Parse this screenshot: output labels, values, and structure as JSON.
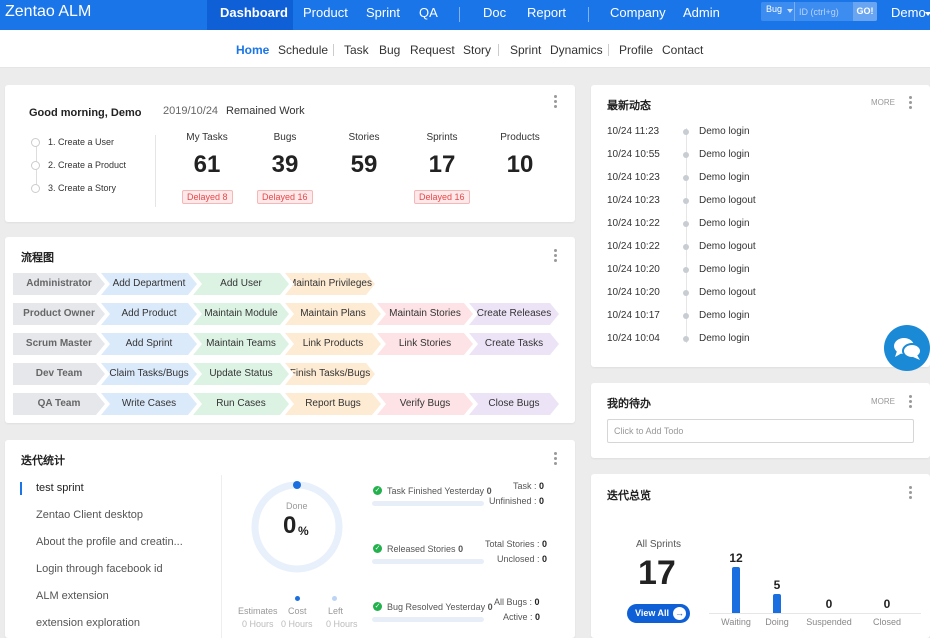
{
  "app": {
    "brand": "Zentao ALM"
  },
  "topnav": {
    "items": [
      "Dashboard",
      "Product",
      "Sprint",
      "QA",
      "Doc",
      "Report",
      "Company",
      "Admin"
    ],
    "search": {
      "type": "Bug",
      "placeholder": "ID (ctrl+g)",
      "go": "GO!"
    },
    "user": "Demo"
  },
  "subnav": {
    "items": [
      "Home",
      "Schedule",
      "Task",
      "Bug",
      "Request",
      "Story",
      "Sprint",
      "Dynamics",
      "Profile",
      "Contact"
    ]
  },
  "welcome": {
    "greeting": "Good morning, Demo",
    "date": "2019/10/24",
    "remained": "Remained Work",
    "steps": [
      "1. Create a User",
      "2. Create a Product",
      "3. Create a Story"
    ],
    "stats": [
      {
        "label": "My Tasks",
        "value": "61",
        "delayed": "Delayed 8"
      },
      {
        "label": "Bugs",
        "value": "39",
        "delayed": "Delayed 16"
      },
      {
        "label": "Stories",
        "value": "59",
        "delayed": ""
      },
      {
        "label": "Sprints",
        "value": "17",
        "delayed": "Delayed 16"
      },
      {
        "label": "Products",
        "value": "10",
        "delayed": ""
      }
    ]
  },
  "flow": {
    "title": "流程图",
    "rows": [
      {
        "role": "Administrator",
        "steps": [
          "Add Department",
          "Add User",
          "Maintain Privileges"
        ]
      },
      {
        "role": "Product Owner",
        "steps": [
          "Add Product",
          "Maintain Module",
          "Maintain Plans",
          "Maintain Stories",
          "Create Releases"
        ]
      },
      {
        "role": "Scrum Master",
        "steps": [
          "Add Sprint",
          "Maintain Teams",
          "Link Products",
          "Link Stories",
          "Create Tasks"
        ]
      },
      {
        "role": "Dev Team",
        "steps": [
          "Claim Tasks/Bugs",
          "Update Status",
          "Finish Tasks/Bugs"
        ]
      },
      {
        "role": "QA Team",
        "steps": [
          "Write Cases",
          "Run Cases",
          "Report Bugs",
          "Verify Bugs",
          "Close Bugs"
        ]
      }
    ],
    "colors": [
      "#dbeafb",
      "#dcf3e4",
      "#fdebd3",
      "#fde3e6",
      "#ece3f7"
    ]
  },
  "iteration": {
    "title": "迭代统计",
    "sprints": [
      "test sprint",
      "Zentao Client desktop",
      "About the profile and creatin...",
      "Login through facebook id",
      "ALM extension",
      "extension exploration"
    ],
    "done_label": "Done",
    "done_value": "0",
    "done_unit": "%",
    "ring_progress": 0,
    "hours": [
      {
        "label": "Estimates",
        "value": "0 Hours"
      },
      {
        "label": "Cost",
        "value": "0 Hours"
      },
      {
        "label": "Left",
        "value": "0 Hours"
      }
    ],
    "progress": [
      {
        "label": "Task Finished Yesterday",
        "value": "0",
        "stats": [
          {
            "k": "Task",
            "v": "0"
          },
          {
            "k": "Unfinished",
            "v": "0"
          }
        ]
      },
      {
        "label": "Released Stories",
        "value": "0",
        "stats": [
          {
            "k": "Total Stories",
            "v": "0"
          },
          {
            "k": "Unclosed",
            "v": "0"
          }
        ]
      },
      {
        "label": "Bug Resolved Yesterday",
        "value": "0",
        "stats": [
          {
            "k": "All Bugs",
            "v": "0"
          },
          {
            "k": "Active",
            "v": "0"
          }
        ]
      }
    ]
  },
  "dynamics": {
    "title": "最新动态",
    "more": "MORE",
    "items": [
      {
        "time": "10/24 11:23",
        "action": "Demo login"
      },
      {
        "time": "10/24 10:55",
        "action": "Demo login"
      },
      {
        "time": "10/24 10:23",
        "action": "Demo login"
      },
      {
        "time": "10/24 10:23",
        "action": "Demo logout"
      },
      {
        "time": "10/24 10:22",
        "action": "Demo login"
      },
      {
        "time": "10/24 10:22",
        "action": "Demo logout"
      },
      {
        "time": "10/24 10:20",
        "action": "Demo login"
      },
      {
        "time": "10/24 10:20",
        "action": "Demo logout"
      },
      {
        "time": "10/24 10:17",
        "action": "Demo login"
      },
      {
        "time": "10/24 10:04",
        "action": "Demo login"
      }
    ]
  },
  "todo": {
    "title": "我的待办",
    "more": "MORE",
    "placeholder": "Click to Add Todo"
  },
  "overview": {
    "title": "迭代总览",
    "all_label": "All Sprints",
    "all_value": "17",
    "view_all": "View All",
    "chart_data": {
      "type": "bar",
      "categories": [
        "Waiting",
        "Doing",
        "Suspended",
        "Closed"
      ],
      "values": [
        12,
        5,
        0,
        0
      ],
      "bar_color": "#1a6fe0"
    }
  },
  "colors": {
    "primary": "#1a75e8",
    "danger": "#e8484a",
    "success": "#22b14c"
  }
}
